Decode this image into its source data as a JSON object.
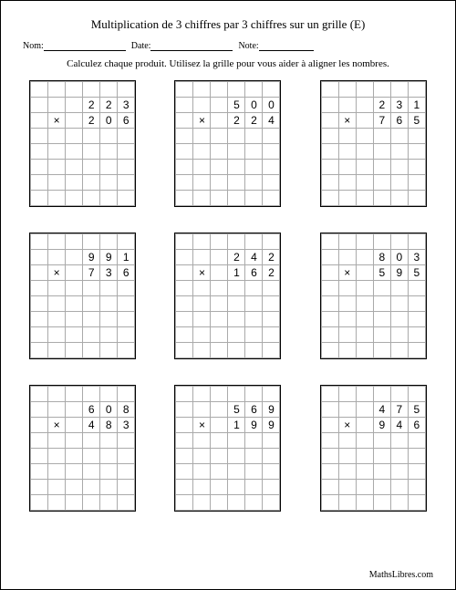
{
  "title": "Multiplication de 3 chiffres par 3 chiffres sur un grille (E)",
  "labels": {
    "name": "Nom:",
    "date": "Date:",
    "note": "Note:"
  },
  "instructions": "Calculez chaque produit. Utilisez la grille pour vous aider à aligner les nombres.",
  "multiply_sign": "×",
  "footer": "MathsLibres.com",
  "grid": {
    "cols": 6,
    "total_rows": 8,
    "multiplicand_row": 1,
    "multiplier_row": 2,
    "sign_col": 1,
    "digit_cols": [
      3,
      4,
      5
    ],
    "sep_rows_top": [
      1,
      3,
      7
    ]
  },
  "problems": [
    {
      "a": [
        "2",
        "2",
        "3"
      ],
      "b": [
        "2",
        "0",
        "6"
      ]
    },
    {
      "a": [
        "5",
        "0",
        "0"
      ],
      "b": [
        "2",
        "2",
        "4"
      ]
    },
    {
      "a": [
        "2",
        "3",
        "1"
      ],
      "b": [
        "7",
        "6",
        "5"
      ]
    },
    {
      "a": [
        "9",
        "9",
        "1"
      ],
      "b": [
        "7",
        "3",
        "6"
      ]
    },
    {
      "a": [
        "2",
        "4",
        "2"
      ],
      "b": [
        "1",
        "6",
        "2"
      ]
    },
    {
      "a": [
        "8",
        "0",
        "3"
      ],
      "b": [
        "5",
        "9",
        "5"
      ]
    },
    {
      "a": [
        "6",
        "0",
        "8"
      ],
      "b": [
        "4",
        "8",
        "3"
      ]
    },
    {
      "a": [
        "5",
        "6",
        "9"
      ],
      "b": [
        "1",
        "9",
        "9"
      ]
    },
    {
      "a": [
        "4",
        "7",
        "5"
      ],
      "b": [
        "9",
        "4",
        "6"
      ]
    }
  ]
}
